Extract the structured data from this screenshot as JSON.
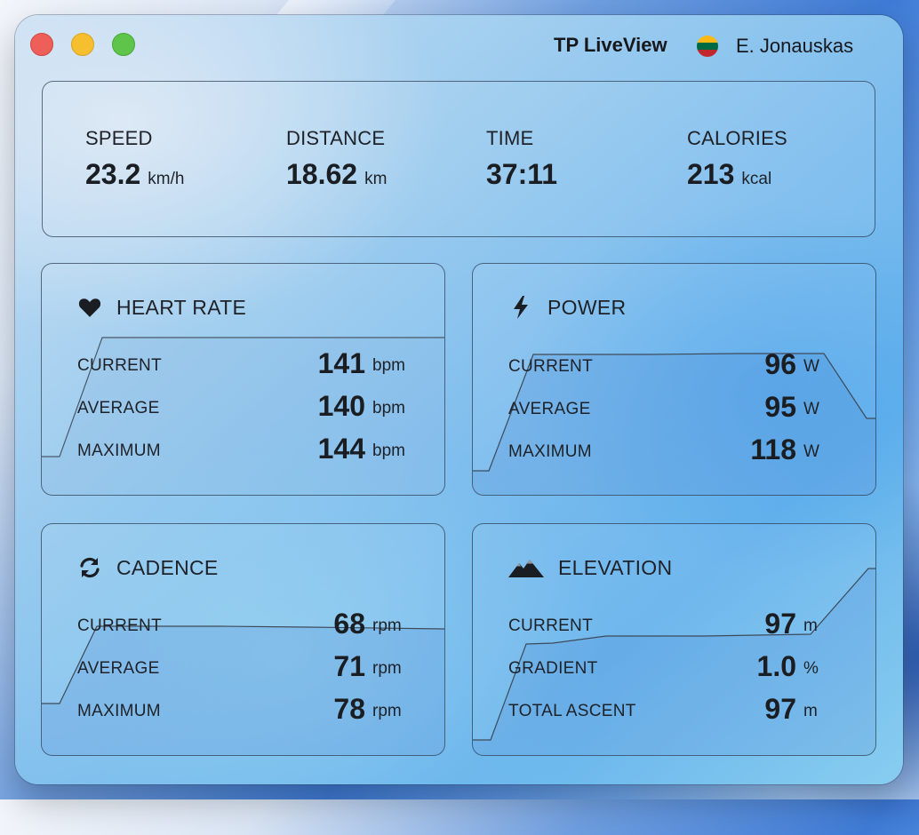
{
  "window": {
    "app_title": "TP LiveView",
    "user_name": "E. Jonauskas",
    "flag": {
      "colors": [
        "#fdb913",
        "#006a44",
        "#c1272d"
      ],
      "country": "Lithuania"
    }
  },
  "summary": [
    {
      "label": "SPEED",
      "value": "23.2",
      "unit": "km/h"
    },
    {
      "label": "DISTANCE",
      "value": "18.62",
      "unit": "km"
    },
    {
      "label": "TIME",
      "value": "37:11",
      "unit": ""
    },
    {
      "label": "CALORIES",
      "value": "213",
      "unit": "kcal"
    }
  ],
  "cards": {
    "heart_rate": {
      "title": "HEART RATE",
      "icon": "heart-icon",
      "rows": [
        {
          "label": "CURRENT",
          "value": "141",
          "unit": "bpm"
        },
        {
          "label": "AVERAGE",
          "value": "140",
          "unit": "bpm"
        },
        {
          "label": "MAXIMUM",
          "value": "144",
          "unit": "bpm"
        }
      ]
    },
    "power": {
      "title": "POWER",
      "icon": "bolt-icon",
      "rows": [
        {
          "label": "CURRENT",
          "value": "96",
          "unit": "W"
        },
        {
          "label": "AVERAGE",
          "value": "95",
          "unit": "W"
        },
        {
          "label": "MAXIMUM",
          "value": "118",
          "unit": "W"
        }
      ]
    },
    "cadence": {
      "title": "CADENCE",
      "icon": "refresh-icon",
      "rows": [
        {
          "label": "CURRENT",
          "value": "68",
          "unit": "rpm"
        },
        {
          "label": "AVERAGE",
          "value": "71",
          "unit": "rpm"
        },
        {
          "label": "MAXIMUM",
          "value": "78",
          "unit": "rpm"
        }
      ]
    },
    "elevation": {
      "title": "ELEVATION",
      "icon": "mountain-icon",
      "rows": [
        {
          "label": "CURRENT",
          "value": "97",
          "unit": "m"
        },
        {
          "label": "GRADIENT",
          "value": "1.0",
          "unit": "%"
        },
        {
          "label": "TOTAL ASCENT",
          "value": "97",
          "unit": "m"
        }
      ]
    }
  },
  "colors": {
    "traffic_close": "#ed5f58",
    "traffic_minimize": "#f5bf2f",
    "traffic_zoom": "#5fc54a"
  }
}
